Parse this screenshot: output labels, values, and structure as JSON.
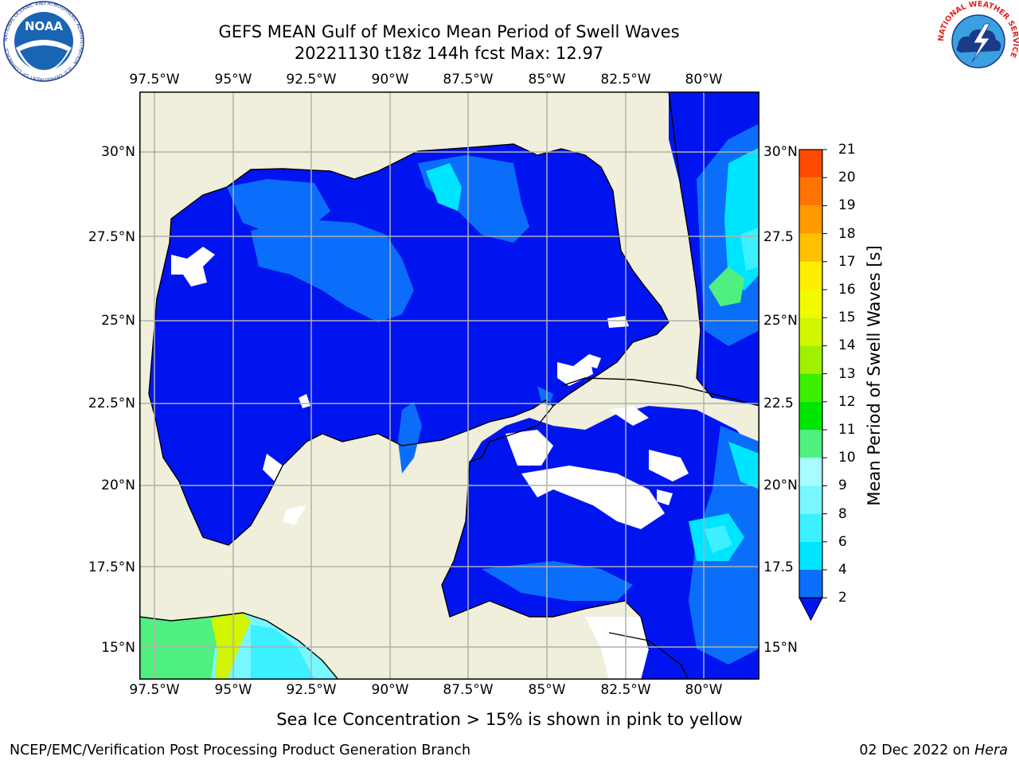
{
  "header": {
    "title_line1": "GEFS MEAN Gulf of Mexico Mean Period of Swell Waves",
    "title_line2": "20221130 t18z 144h fcst   Max: 12.97"
  },
  "logos": {
    "noaa_text": "NOAA",
    "noaa_ring_text": "NATIONAL OCEANIC AND ATMOSPHERIC ADMINISTRATION · U.S. DEPARTMENT OF COMMERCE",
    "nws_ring_text": "NATIONAL WEATHER SERVICE"
  },
  "map": {
    "lon_labels": [
      "97.5°W",
      "95°W",
      "92.5°W",
      "90°W",
      "87.5°W",
      "85°W",
      "82.5°W",
      "80°W"
    ],
    "lat_labels_left": [
      "30°N",
      "27.5°N",
      "25°N",
      "22.5°N",
      "20°N",
      "17.5°N",
      "15°N"
    ],
    "lat_labels_right": [
      "30°N",
      "27.5",
      "25°N",
      "22.5",
      "20°N",
      "17.5",
      "15°N"
    ],
    "extent": {
      "lon_min": -98,
      "lon_max": -78.2,
      "lat_min": 14.1,
      "lat_max": 31.8
    },
    "colors": {
      "land": "#efefdc",
      "grid": "#b0b0b0",
      "coast": "#000000"
    }
  },
  "colorbar": {
    "label": "Mean Period of Swell Waves [s]",
    "ticks": [
      "2",
      "4",
      "6",
      "8",
      "9",
      "10",
      "11",
      "12",
      "13",
      "14",
      "15",
      "16",
      "17",
      "18",
      "19",
      "20",
      "21"
    ],
    "colors": [
      "#0a6efa",
      "#00e5ff",
      "#3cf0ff",
      "#78f7ff",
      "#a8fbff",
      "#50f080",
      "#00e600",
      "#3cee00",
      "#a0f000",
      "#d2f500",
      "#f2fa00",
      "#ffee00",
      "#ffc000",
      "#ff9a00",
      "#ff7300",
      "#ff4a00",
      "#ff1e00"
    ],
    "extend_color": "#0014f0"
  },
  "footer": {
    "sea_ice_note": "Sea Ice Concentration > 15% is shown in pink to yellow",
    "branch": "NCEP/EMC/Verification Post Processing Product Generation Branch",
    "date": "02 Dec 2022 on ",
    "machine": "Hera"
  }
}
